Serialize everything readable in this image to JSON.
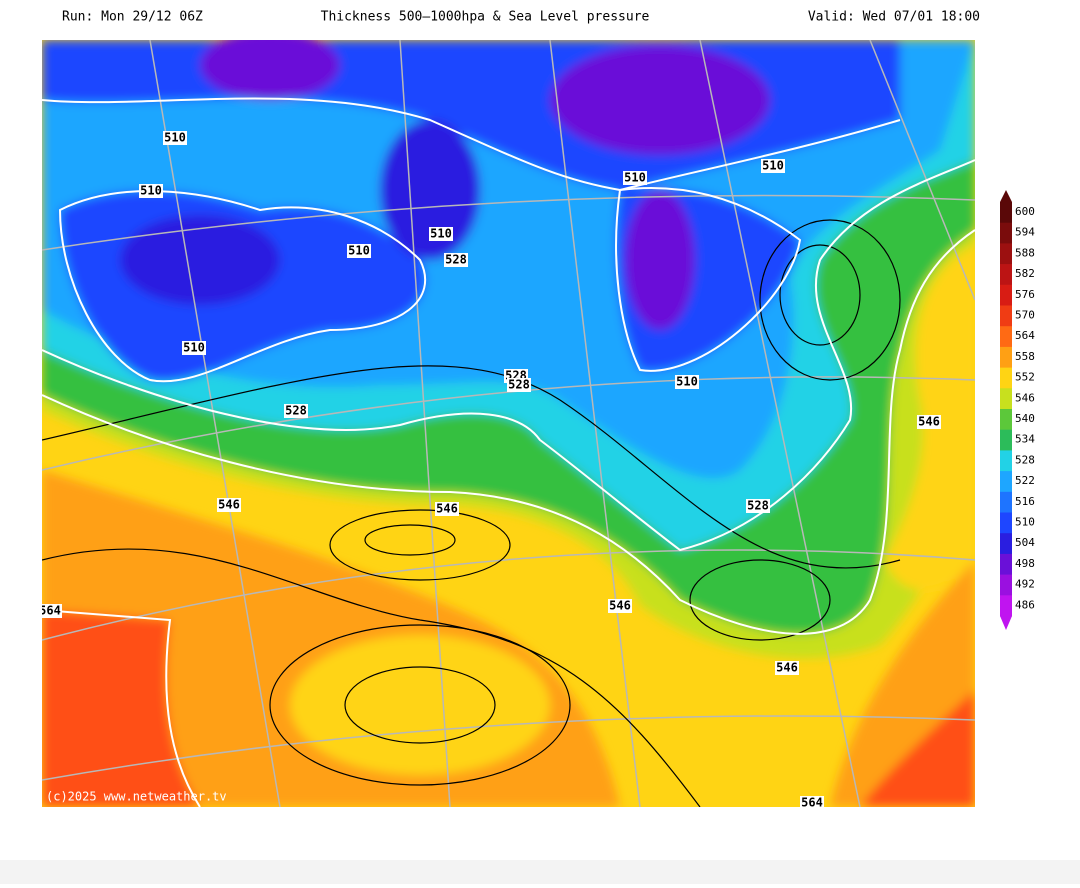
{
  "header": {
    "run": "Run: Mon 29/12 06Z",
    "title": "Thickness 500–1000hpa & Sea Level pressure",
    "valid": "Valid: Wed 07/01 18:00"
  },
  "contour_labels": [
    510,
    510,
    510,
    510,
    528,
    510,
    528,
    528,
    528,
    510,
    510,
    510,
    546,
    528,
    546,
    546,
    546,
    546,
    564,
    564
  ],
  "legend": {
    "levels": [
      {
        "value": 600,
        "color": "#5a0808"
      },
      {
        "value": 594,
        "color": "#7a0c0c"
      },
      {
        "value": 588,
        "color": "#9c1010"
      },
      {
        "value": 582,
        "color": "#bc1414"
      },
      {
        "value": 576,
        "color": "#d81c14"
      },
      {
        "value": 570,
        "color": "#f03c14"
      },
      {
        "value": 564,
        "color": "#ff6a14"
      },
      {
        "value": 558,
        "color": "#ffa014"
      },
      {
        "value": 552,
        "color": "#ffd414"
      },
      {
        "value": 546,
        "color": "#c8e01e"
      },
      {
        "value": 540,
        "color": "#5cc83a"
      },
      {
        "value": 534,
        "color": "#2cbc5a"
      },
      {
        "value": 528,
        "color": "#22d2e6"
      },
      {
        "value": 522,
        "color": "#1ea6ff"
      },
      {
        "value": 516,
        "color": "#1e74ff"
      },
      {
        "value": 510,
        "color": "#1e46ff"
      },
      {
        "value": 504,
        "color": "#2a1ee0"
      },
      {
        "value": 498,
        "color": "#6a10d8"
      },
      {
        "value": 492,
        "color": "#9a10e0"
      },
      {
        "value": 486,
        "color": "#c014f0"
      }
    ]
  },
  "credit": "(c)2025 www.netweather.tv"
}
